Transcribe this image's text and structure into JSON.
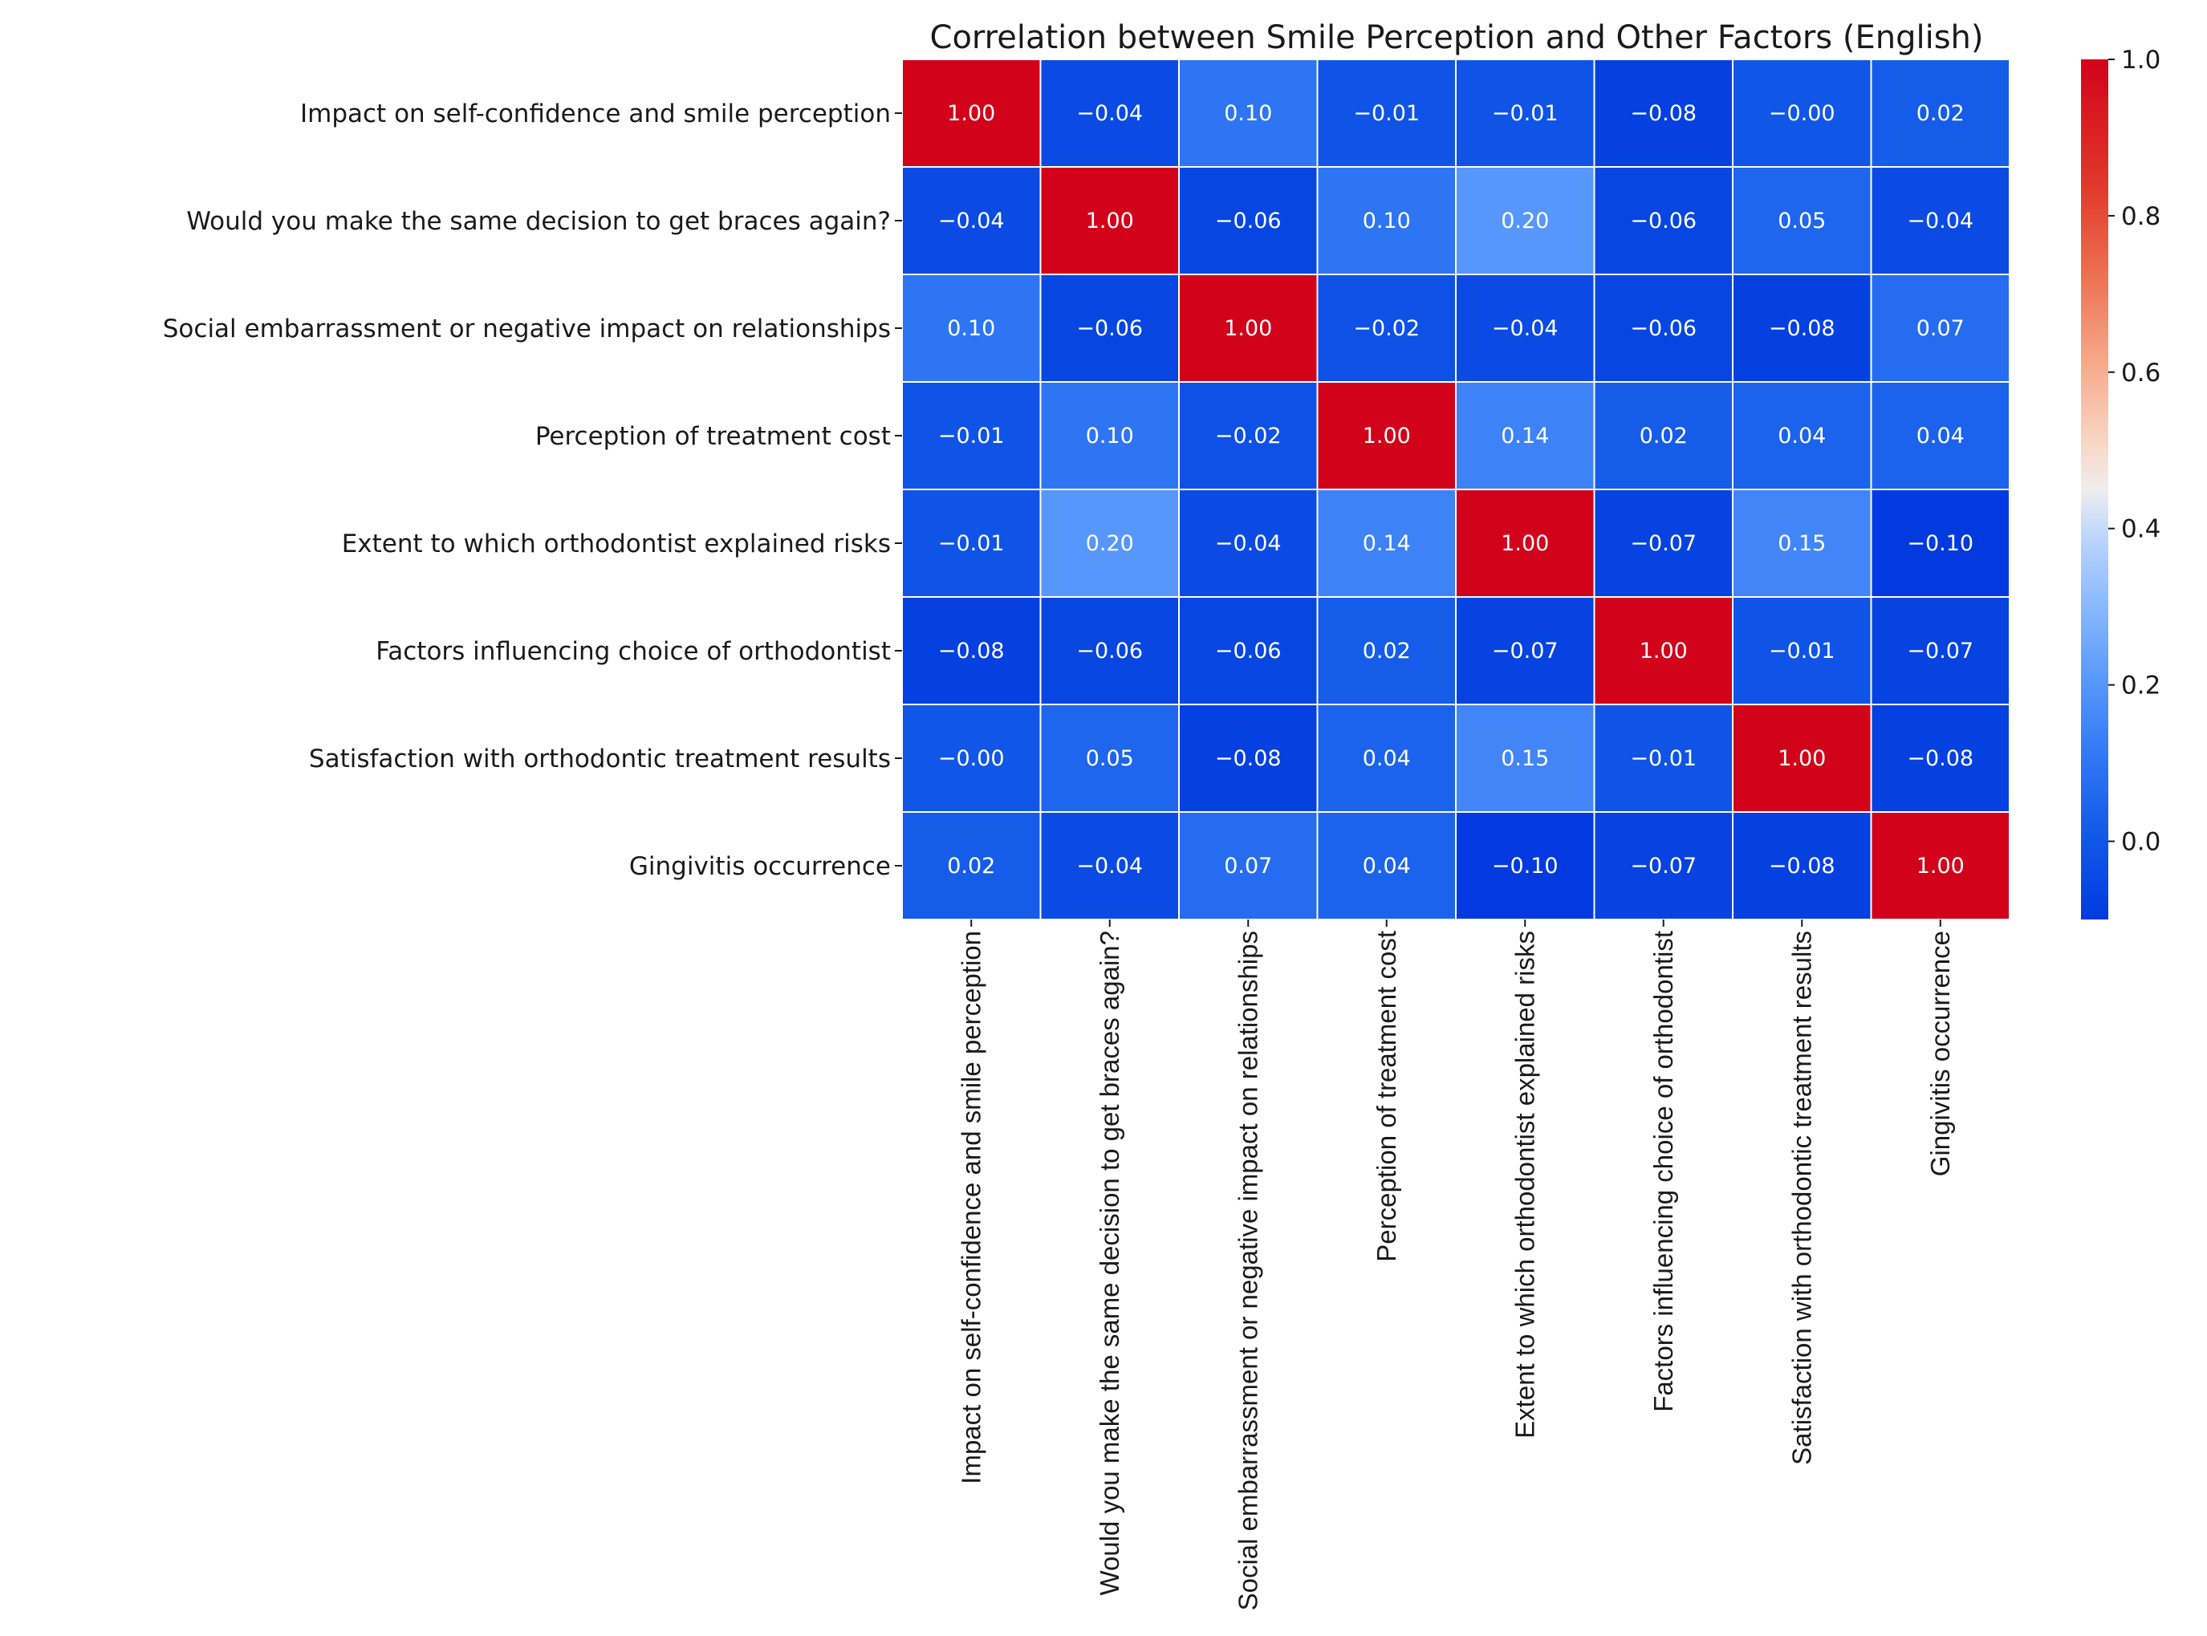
{
  "chart_data": {
    "type": "heatmap",
    "title": "Correlation between Smile Perception and Other Factors (English)",
    "row_labels": [
      "Impact on self-confidence and smile perception",
      "Would you make the same decision to get braces again?",
      "Social embarrassment or negative impact on relationships",
      "Perception of treatment cost",
      "Extent to which orthodontist explained risks",
      "Factors influencing choice of orthodontist",
      "Satisfaction with orthodontic treatment results",
      "Gingivitis occurrence"
    ],
    "column_labels": [
      "Impact on self-confidence and smile perception",
      "Would you make the same decision to get braces again?",
      "Social embarrassment or negative impact on relationships",
      "Perception of treatment cost",
      "Extent to which orthodontist explained risks",
      "Factors influencing choice of orthodontist",
      "Satisfaction with orthodontic treatment results",
      "Gingivitis occurrence"
    ],
    "cell_labels": [
      [
        "1.00",
        "−0.04",
        "0.10",
        "−0.01",
        "−0.01",
        "−0.08",
        "−0.00",
        "0.02"
      ],
      [
        "−0.04",
        "1.00",
        "−0.06",
        "0.10",
        "0.20",
        "−0.06",
        "0.05",
        "−0.04"
      ],
      [
        "0.10",
        "−0.06",
        "1.00",
        "−0.02",
        "−0.04",
        "−0.06",
        "−0.08",
        "0.07"
      ],
      [
        "−0.01",
        "0.10",
        "−0.02",
        "1.00",
        "0.14",
        "0.02",
        "0.04",
        "0.04"
      ],
      [
        "−0.01",
        "0.20",
        "−0.04",
        "0.14",
        "1.00",
        "−0.07",
        "0.15",
        "−0.10"
      ],
      [
        "−0.08",
        "−0.06",
        "−0.06",
        "0.02",
        "−0.07",
        "1.00",
        "−0.01",
        "−0.07"
      ],
      [
        "−0.00",
        "0.05",
        "−0.08",
        "0.04",
        "0.15",
        "−0.01",
        "1.00",
        "−0.08"
      ],
      [
        "0.02",
        "−0.04",
        "0.07",
        "0.04",
        "−0.10",
        "−0.07",
        "−0.08",
        "1.00"
      ]
    ],
    "values": [
      [
        1.0,
        -0.04,
        0.1,
        -0.01,
        -0.01,
        -0.08,
        -0.0,
        0.02
      ],
      [
        -0.04,
        1.0,
        -0.06,
        0.1,
        0.2,
        -0.06,
        0.05,
        -0.04
      ],
      [
        0.1,
        -0.06,
        1.0,
        -0.02,
        -0.04,
        -0.06,
        -0.08,
        0.07
      ],
      [
        -0.01,
        0.1,
        -0.02,
        1.0,
        0.14,
        0.02,
        0.04,
        0.04
      ],
      [
        -0.01,
        0.2,
        -0.04,
        0.14,
        1.0,
        -0.07,
        0.15,
        -0.1
      ],
      [
        -0.08,
        -0.06,
        -0.06,
        0.02,
        -0.07,
        1.0,
        -0.01,
        -0.07
      ],
      [
        -0.0,
        0.05,
        -0.08,
        0.04,
        0.15,
        -0.01,
        1.0,
        -0.08
      ],
      [
        0.02,
        -0.04,
        0.07,
        0.04,
        -0.1,
        -0.07,
        -0.08,
        1.0
      ]
    ],
    "colormap": "coolwarm (blue to red)",
    "color_range": [
      -0.1,
      1.0
    ],
    "colorbar": {
      "ticks": [
        0.0,
        0.2,
        0.4,
        0.6,
        0.8,
        1.0
      ],
      "tick_labels": [
        "0.0",
        "0.2",
        "0.4",
        "0.6",
        "0.8",
        "1.0"
      ],
      "placement": "right"
    },
    "xlabel": "",
    "ylabel": ""
  }
}
